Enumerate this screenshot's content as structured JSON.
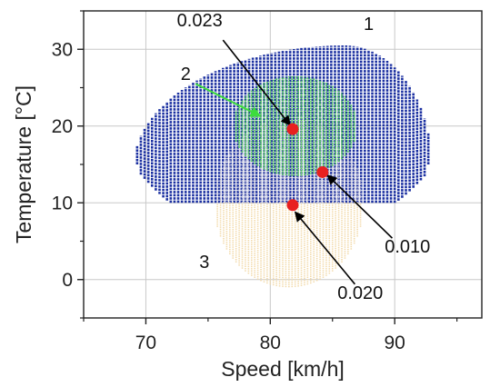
{
  "chart_data": {
    "type": "scatter",
    "xlabel": "Speed [km/h]",
    "ylabel": "Temperature [°C]",
    "xlim": [
      65,
      97
    ],
    "ylim": [
      -5,
      35
    ],
    "xticks": [
      70,
      80,
      90
    ],
    "yticks": [
      0,
      10,
      20,
      30
    ],
    "grid": true,
    "regions": [
      {
        "label": "1",
        "color": "#1a2fa0",
        "x_range": [
          69,
          93
        ],
        "y_range": [
          10,
          30.5
        ],
        "description_shape": "dome"
      },
      {
        "label": "2",
        "color": "#4dd84d",
        "center": [
          82,
          20
        ],
        "radius_x": 5,
        "radius_y": 6.5
      },
      {
        "label": "3",
        "color": "#f2d9a8",
        "center": [
          81.5,
          10
        ],
        "radius_x": 6,
        "radius_y": 11
      }
    ],
    "points": [
      {
        "label": "0.023",
        "x": 81.8,
        "y": 19.6,
        "color": "#e82020"
      },
      {
        "label": "0.010",
        "x": 84.2,
        "y": 14.0,
        "color": "#e82020"
      },
      {
        "label": "0.020",
        "x": 81.8,
        "y": 9.7,
        "color": "#e82020"
      }
    ],
    "annotations": [
      {
        "text": "1",
        "x": 87.5,
        "y": 32.5
      },
      {
        "text": "2",
        "x": 72.8,
        "y": 26.0
      },
      {
        "text": "3",
        "x": 74.3,
        "y": 1.5
      },
      {
        "text": "0.023",
        "x": 72.5,
        "y": 33.0
      },
      {
        "text": "0.010",
        "x": 89.2,
        "y": 3.5
      },
      {
        "text": "0.020",
        "x": 85.4,
        "y": -2.5
      }
    ],
    "colors": {
      "region1": "#1a2fa0",
      "region2": "#4dd84d",
      "region3": "#f2d9a8",
      "point": "#e82020",
      "arrow_black": "#000000",
      "arrow_green": "#3ddc3d"
    }
  }
}
